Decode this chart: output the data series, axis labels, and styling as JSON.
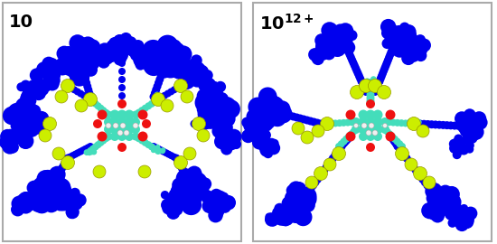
{
  "bg_color": "#ffffff",
  "border_color": "#aaaaaa",
  "panel_border_lw": 1.5,
  "colors": {
    "blue": "#0000EE",
    "yellow": "#CCEE00",
    "cyan": "#44DDBB",
    "red": "#EE1111",
    "white": "#F0F0F0",
    "dgray": "#888888"
  },
  "left_label": "10",
  "right_label_base": "10",
  "right_label_sup": "12+",
  "label_fontsize": 14
}
